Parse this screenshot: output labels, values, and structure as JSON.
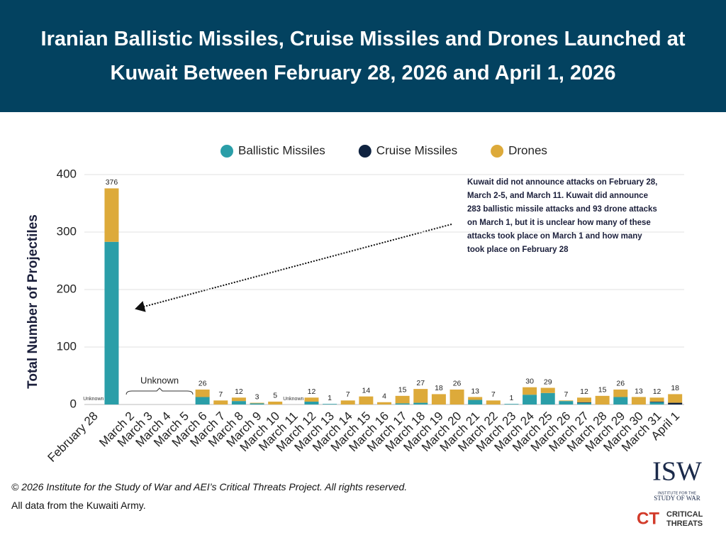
{
  "chart_data": {
    "type": "stacked-bar",
    "title": "Iranian Ballistic Missiles, Cruise Missiles and Drones Launched at Kuwait Between February 28, 2026 and April 1, 2026",
    "y_label": "Total Number of Projectiles",
    "note": "Kuwait did not announce attacks on February 28, March 2-5, and March 11. Kuwait did announce 283 ballistic missile attacks and 93 drone attacks on March 1, but it is unclear how many of these attacks took place on March 1 and how many took place on February 28",
    "categories": [
      "February 28",
      null,
      "March 2",
      "March 3",
      "March 4",
      "March 5",
      "March 6",
      "March 7",
      "March 8",
      "March 9",
      "March 10",
      "March 11",
      "March 12",
      "March 13",
      "March 14",
      "March 15",
      "March 16",
      "March 17",
      "March 18",
      "March 19",
      "March 20",
      "March 21",
      "March 22",
      "March 23",
      "March 24",
      "March 25",
      "March 26",
      "March 27",
      "March 28",
      "March 29",
      "March 30",
      "March 31",
      "April 1"
    ],
    "series": [
      {
        "name": "Ballistic Missiles",
        "color": "#2a9ea8",
        "values": [
          null,
          283,
          null,
          null,
          null,
          null,
          13,
          0,
          6,
          2,
          0,
          null,
          5,
          1,
          0,
          0,
          0,
          2,
          3,
          0,
          0,
          8,
          0,
          1,
          17,
          20,
          6,
          3,
          0,
          13,
          0,
          4,
          0
        ]
      },
      {
        "name": "Cruise Missiles",
        "color": "#0f2340",
        "values": [
          null,
          0,
          null,
          null,
          null,
          null,
          0,
          0,
          0,
          0,
          0,
          null,
          0,
          0,
          0,
          0,
          0,
          0,
          0,
          0,
          0,
          0,
          0,
          0,
          0,
          0,
          0,
          1,
          0,
          0,
          0,
          1,
          3
        ]
      },
      {
        "name": "Drones",
        "color": "#ddaa3a",
        "values": [
          null,
          93,
          null,
          null,
          null,
          null,
          13,
          7,
          6,
          1,
          5,
          null,
          7,
          0,
          7,
          14,
          4,
          13,
          24,
          18,
          26,
          5,
          7,
          0,
          13,
          9,
          1,
          8,
          15,
          13,
          13,
          7,
          15
        ]
      }
    ],
    "totals": [
      null,
      376,
      null,
      null,
      null,
      null,
      26,
      7,
      12,
      3,
      5,
      null,
      12,
      1,
      7,
      14,
      4,
      15,
      27,
      18,
      26,
      13,
      7,
      1,
      30,
      29,
      7,
      12,
      15,
      26,
      13,
      12,
      18
    ],
    "total_labels": [
      "Unknown",
      null,
      null,
      null,
      null,
      null,
      null,
      null,
      null,
      null,
      null,
      "Unknown",
      null,
      null,
      null,
      null,
      null,
      null,
      null,
      null,
      null,
      null,
      null,
      null,
      null,
      null,
      null,
      null,
      null,
      null,
      null,
      null,
      null
    ],
    "span_label": "Unknown",
    "ylim": [
      0,
      400
    ],
    "yticks": [
      0,
      100,
      200,
      300,
      400
    ],
    "grid": true,
    "legend": "top"
  },
  "footer": {
    "copyright": "© 2026 Institute for the Study of War and AEI’s Critical Threats Project. All rights reserved.",
    "source": "All data from the Kuwaiti Army."
  },
  "logos": {
    "isw": "ISW",
    "isw_line1": "INSTITUTE FOR THE",
    "isw_line2": "STUDY OF WAR",
    "ct": "CT",
    "ct_line1": "CRITICAL",
    "ct_line2": "THREATS"
  }
}
